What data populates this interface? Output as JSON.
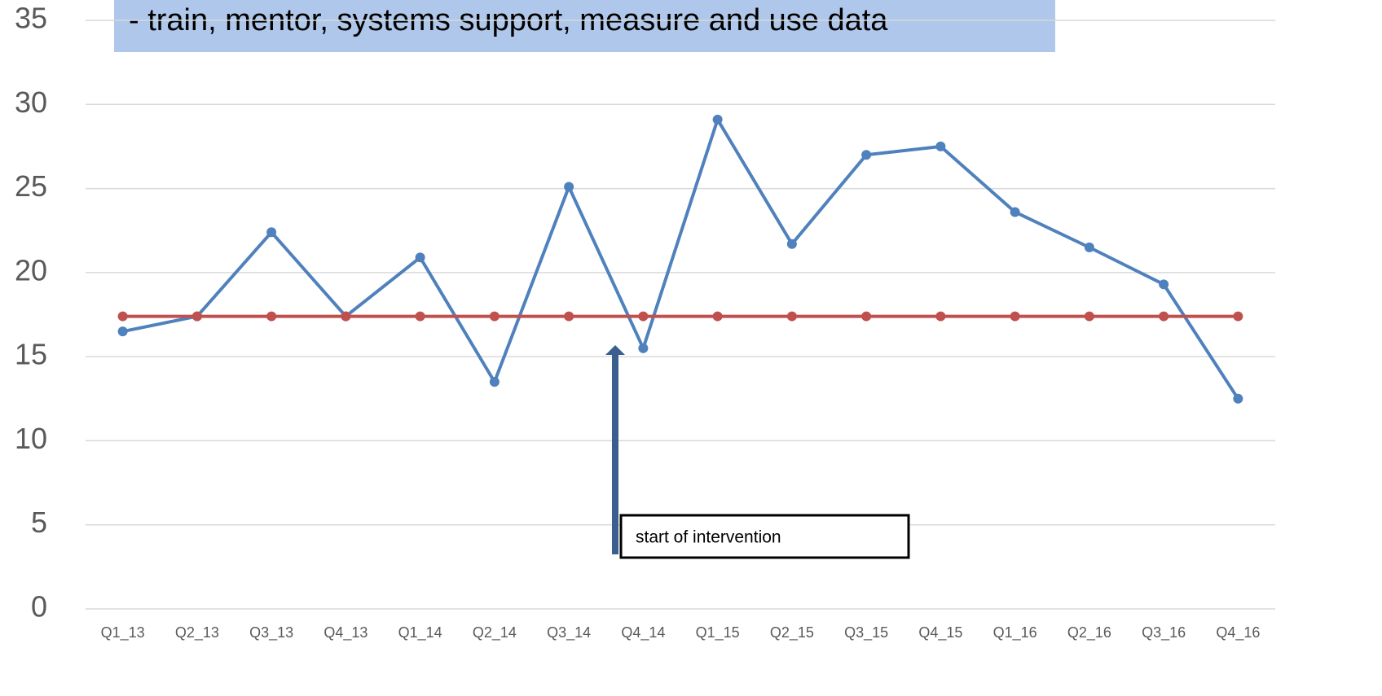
{
  "chart_data": {
    "type": "line",
    "title": "- train, mentor, systems support, measure and use data",
    "annotation": "start of intervention",
    "categories": [
      "Q1_13",
      "Q2_13",
      "Q3_13",
      "Q4_13",
      "Q1_14",
      "Q2_14",
      "Q3_14",
      "Q4_14",
      "Q1_15",
      "Q2_15",
      "Q3_15",
      "Q4_15",
      "Q1_16",
      "Q2_16",
      "Q3_16",
      "Q4_16"
    ],
    "series": [
      {
        "color": "#4f81bd",
        "values": [
          16.5,
          17.4,
          22.4,
          17.4,
          20.9,
          13.5,
          25.1,
          15.5,
          29.1,
          21.7,
          27.0,
          27.5,
          23.6,
          21.5,
          19.3,
          12.5
        ]
      },
      {
        "color": "#c0504d",
        "values": [
          17.4,
          17.4,
          17.4,
          17.4,
          17.4,
          17.4,
          17.4,
          17.4,
          17.4,
          17.4,
          17.4,
          17.4,
          17.4,
          17.4,
          17.4,
          17.4
        ]
      }
    ],
    "ylim": [
      0,
      35
    ],
    "yticks": [
      0,
      5,
      10,
      15,
      20,
      25,
      30,
      35
    ],
    "grid": true
  }
}
